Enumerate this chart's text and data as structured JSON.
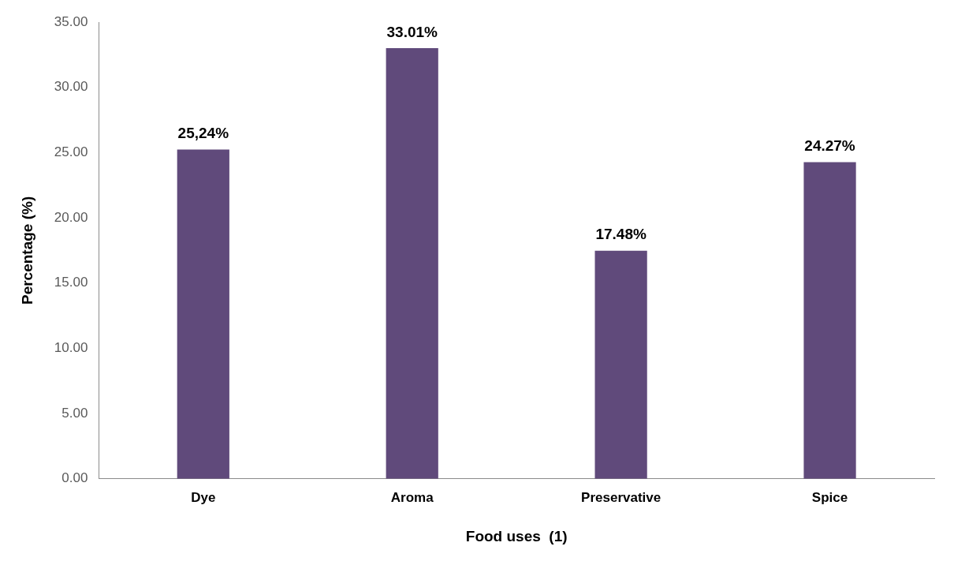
{
  "chart_data": {
    "type": "bar",
    "xlabel": "Food uses  (1)",
    "ylabel": "Percentage (%)",
    "categories": [
      "Dye",
      "Aroma",
      "Preservative",
      "Spice"
    ],
    "values": [
      25.24,
      33.01,
      17.48,
      24.27
    ],
    "value_labels": [
      "25,24%",
      "33.01%",
      "17.48%",
      "24.27%"
    ],
    "color": "#604a7b",
    "ylim": [
      0,
      35
    ],
    "yticks": [
      {
        "value": 0,
        "label": "0.00"
      },
      {
        "value": 5,
        "label": "5.00"
      },
      {
        "value": 10,
        "label": "10.00"
      },
      {
        "value": 15,
        "label": "15.00"
      },
      {
        "value": 20,
        "label": "20.00"
      },
      {
        "value": 25,
        "label": "25.00"
      },
      {
        "value": 30,
        "label": "30.00"
      },
      {
        "value": 35,
        "label": "35.00"
      }
    ],
    "grid": false,
    "legend": false
  }
}
